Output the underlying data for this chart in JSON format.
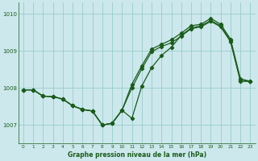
{
  "title": "Graphe pression niveau de la mer (hPa)",
  "background_color": "#cce8ec",
  "grid_color": "#99cccc",
  "line_color": "#1a5c1a",
  "text_color": "#1a5c1a",
  "xlim": [
    -0.5,
    23.5
  ],
  "ylim": [
    1006.5,
    1010.3
  ],
  "yticks": [
    1007,
    1008,
    1009,
    1010
  ],
  "xticks": [
    0,
    1,
    2,
    3,
    4,
    5,
    6,
    7,
    8,
    9,
    10,
    11,
    12,
    13,
    14,
    15,
    16,
    17,
    18,
    19,
    20,
    21,
    22,
    23
  ],
  "series1_x": [
    0,
    1,
    2,
    3,
    4,
    5,
    6,
    7,
    8,
    9,
    10,
    11,
    12,
    13,
    14,
    15,
    16,
    17,
    18,
    19,
    20,
    21,
    22,
    23
  ],
  "series1_y": [
    1007.95,
    1007.95,
    1007.78,
    1007.77,
    1007.7,
    1007.52,
    1007.42,
    1007.38,
    1007.0,
    1007.05,
    1007.4,
    1007.18,
    1008.05,
    1008.55,
    1008.88,
    1009.1,
    1009.42,
    1009.62,
    1009.68,
    1009.82,
    1009.68,
    1009.28,
    1008.2,
    1008.18
  ],
  "series2_x": [
    0,
    1,
    2,
    3,
    4,
    5,
    6,
    7,
    8,
    9,
    10,
    11,
    12,
    13,
    14,
    15,
    16,
    17,
    18,
    19,
    20,
    21,
    22,
    23
  ],
  "series2_y": [
    1007.95,
    1007.95,
    1007.78,
    1007.77,
    1007.7,
    1007.52,
    1007.42,
    1007.38,
    1007.0,
    1007.05,
    1007.4,
    1008.1,
    1008.6,
    1009.05,
    1009.18,
    1009.3,
    1009.48,
    1009.68,
    1009.72,
    1009.88,
    1009.72,
    1009.32,
    1008.25,
    1008.18
  ],
  "series3_x": [
    0,
    1,
    2,
    3,
    4,
    5,
    6,
    7,
    8,
    9,
    10,
    11,
    12,
    13,
    14,
    15,
    16,
    17,
    18,
    19,
    20,
    21,
    22,
    23
  ],
  "series3_y": [
    1007.95,
    1007.95,
    1007.78,
    1007.77,
    1007.7,
    1007.52,
    1007.42,
    1007.38,
    1007.0,
    1007.05,
    1007.4,
    1008.0,
    1008.52,
    1008.98,
    1009.12,
    1009.22,
    1009.4,
    1009.6,
    1009.65,
    1009.8,
    1009.65,
    1009.25,
    1008.18,
    1008.18
  ]
}
